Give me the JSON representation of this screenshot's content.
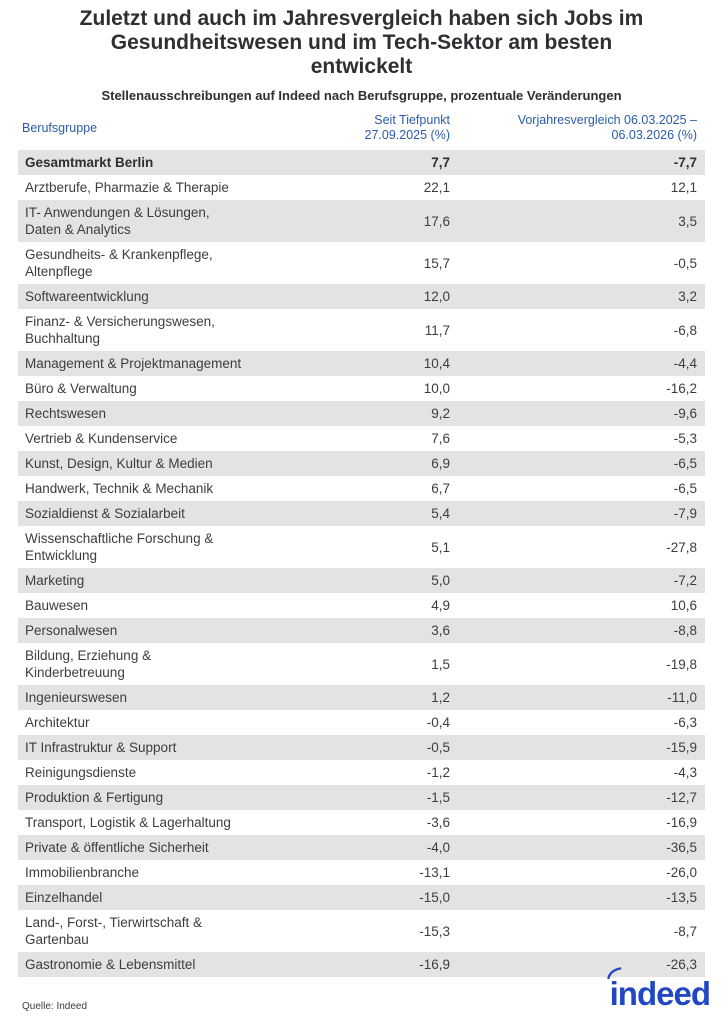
{
  "header": {
    "title": "Zuletzt und auch im Jahresvergleich haben sich Jobs im\nGesundheitswesen und im Tech-Sektor am besten\nentwickelt",
    "subtitle": "Stellenausschreibungen auf Indeed nach Berufsgruppe, prozentuale Veränderungen"
  },
  "table": {
    "columns": [
      "Berufsgruppe",
      "Seit Tiefpunkt\n27.09.2025 (%)",
      "Vorjahresvergleich 06.03.2025 –\n06.03.2026 (%)"
    ],
    "rows": [
      {
        "group": "Gesamtmarkt Berlin",
        "since_trough": "7,7",
        "yoy": "-7,7",
        "is_total": true
      },
      {
        "group": "Arztberufe, Pharmazie & Therapie",
        "since_trough": "22,1",
        "yoy": "12,1"
      },
      {
        "group": "IT- Anwendungen & Lösungen,\nDaten & Analytics",
        "since_trough": "17,6",
        "yoy": "3,5"
      },
      {
        "group": "Gesundheits- & Krankenpflege,\nAltenpflege",
        "since_trough": "15,7",
        "yoy": "-0,5"
      },
      {
        "group": "Softwareentwicklung",
        "since_trough": "12,0",
        "yoy": "3,2"
      },
      {
        "group": "Finanz- & Versicherungswesen,\nBuchhaltung",
        "since_trough": "11,7",
        "yoy": "-6,8"
      },
      {
        "group": "Management & Projektmanagement",
        "since_trough": "10,4",
        "yoy": "-4,4"
      },
      {
        "group": "Büro & Verwaltung",
        "since_trough": "10,0",
        "yoy": "-16,2"
      },
      {
        "group": "Rechtswesen",
        "since_trough": "9,2",
        "yoy": "-9,6"
      },
      {
        "group": "Vertrieb & Kundenservice",
        "since_trough": "7,6",
        "yoy": "-5,3"
      },
      {
        "group": "Kunst, Design, Kultur & Medien",
        "since_trough": "6,9",
        "yoy": "-6,5"
      },
      {
        "group": "Handwerk, Technik & Mechanik",
        "since_trough": "6,7",
        "yoy": "-6,5"
      },
      {
        "group": "Sozialdienst & Sozialarbeit",
        "since_trough": "5,4",
        "yoy": "-7,9"
      },
      {
        "group": "Wissenschaftliche Forschung &\nEntwicklung",
        "since_trough": "5,1",
        "yoy": "-27,8"
      },
      {
        "group": "Marketing",
        "since_trough": "5,0",
        "yoy": "-7,2"
      },
      {
        "group": "Bauwesen",
        "since_trough": "4,9",
        "yoy": "10,6"
      },
      {
        "group": "Personalwesen",
        "since_trough": "3,6",
        "yoy": "-8,8"
      },
      {
        "group": "Bildung, Erziehung &\nKinderbetreuung",
        "since_trough": "1,5",
        "yoy": "-19,8"
      },
      {
        "group": "Ingenieurswesen",
        "since_trough": "1,2",
        "yoy": "-11,0"
      },
      {
        "group": "Architektur",
        "since_trough": "-0,4",
        "yoy": "-6,3"
      },
      {
        "group": "IT Infrastruktur & Support",
        "since_trough": "-0,5",
        "yoy": "-15,9"
      },
      {
        "group": "Reinigungsdienste",
        "since_trough": "-1,2",
        "yoy": "-4,3"
      },
      {
        "group": "Produktion & Fertigung",
        "since_trough": "-1,5",
        "yoy": "-12,7"
      },
      {
        "group": "Transport, Logistik & Lagerhaltung",
        "since_trough": "-3,6",
        "yoy": "-16,9"
      },
      {
        "group": "Private & öffentliche Sicherheit",
        "since_trough": "-4,0",
        "yoy": "-36,5"
      },
      {
        "group": "Immobilienbranche",
        "since_trough": "-13,1",
        "yoy": "-26,0"
      },
      {
        "group": "Einzelhandel",
        "since_trough": "-15,0",
        "yoy": "-13,5"
      },
      {
        "group": "Land-, Forst-, Tierwirtschaft &\nGartenbau",
        "since_trough": "-15,3",
        "yoy": "-8,7"
      },
      {
        "group": "Gastronomie & Lebensmittel",
        "since_trough": "-16,9",
        "yoy": "-26,3"
      }
    ]
  },
  "footer": {
    "source": "Quelle: Indeed",
    "logo_text": "indeed"
  },
  "colors": {
    "header_blue": "#2a5caa",
    "row_shade": "#e4e3e1",
    "text_dark": "#2e2e33",
    "text_body": "#3c3d40",
    "logo_blue": "#2147c5"
  },
  "chart_data": {
    "type": "table",
    "title": "Zuletzt und auch im Jahresvergleich haben sich Jobs im Gesundheitswesen und im Tech-Sektor am besten entwickelt",
    "subtitle": "Stellenausschreibungen auf Indeed nach Berufsgruppe, prozentuale Veränderungen",
    "columns": [
      "Berufsgruppe",
      "Seit Tiefpunkt 27.09.2025 (%)",
      "Vorjahresvergleich 06.03.2025 – 06.03.2026 (%)"
    ],
    "categories": [
      "Gesamtmarkt Berlin",
      "Arztberufe, Pharmazie & Therapie",
      "IT- Anwendungen & Lösungen, Daten & Analytics",
      "Gesundheits- & Krankenpflege, Altenpflege",
      "Softwareentwicklung",
      "Finanz- & Versicherungswesen, Buchhaltung",
      "Management & Projektmanagement",
      "Büro & Verwaltung",
      "Rechtswesen",
      "Vertrieb & Kundenservice",
      "Kunst, Design, Kultur & Medien",
      "Handwerk, Technik & Mechanik",
      "Sozialdienst & Sozialarbeit",
      "Wissenschaftliche Forschung & Entwicklung",
      "Marketing",
      "Bauwesen",
      "Personalwesen",
      "Bildung, Erziehung & Kinderbetreuung",
      "Ingenieurswesen",
      "Architektur",
      "IT Infrastruktur & Support",
      "Reinigungsdienste",
      "Produktion & Fertigung",
      "Transport, Logistik & Lagerhaltung",
      "Private & öffentliche Sicherheit",
      "Immobilienbranche",
      "Einzelhandel",
      "Land-, Forst-, Tierwirtschaft & Gartenbau",
      "Gastronomie & Lebensmittel"
    ],
    "series": [
      {
        "name": "Seit Tiefpunkt 27.09.2025 (%)",
        "values": [
          7.7,
          22.1,
          17.6,
          15.7,
          12.0,
          11.7,
          10.4,
          10.0,
          9.2,
          7.6,
          6.9,
          6.7,
          5.4,
          5.1,
          5.0,
          4.9,
          3.6,
          1.5,
          1.2,
          -0.4,
          -0.5,
          -1.2,
          -1.5,
          -3.6,
          -4.0,
          -13.1,
          -15.0,
          -15.3,
          -16.9
        ]
      },
      {
        "name": "Vorjahresvergleich 06.03.2025 – 06.03.2026 (%)",
        "values": [
          -7.7,
          12.1,
          3.5,
          -0.5,
          3.2,
          -6.8,
          -4.4,
          -16.2,
          -9.6,
          -5.3,
          -6.5,
          -6.5,
          -7.9,
          -27.8,
          -7.2,
          10.6,
          -8.8,
          -19.8,
          -11.0,
          -6.3,
          -15.9,
          -4.3,
          -12.7,
          -16.9,
          -36.5,
          -26.0,
          -13.5,
          -8.7,
          -26.3
        ]
      }
    ],
    "source": "Quelle: Indeed"
  }
}
